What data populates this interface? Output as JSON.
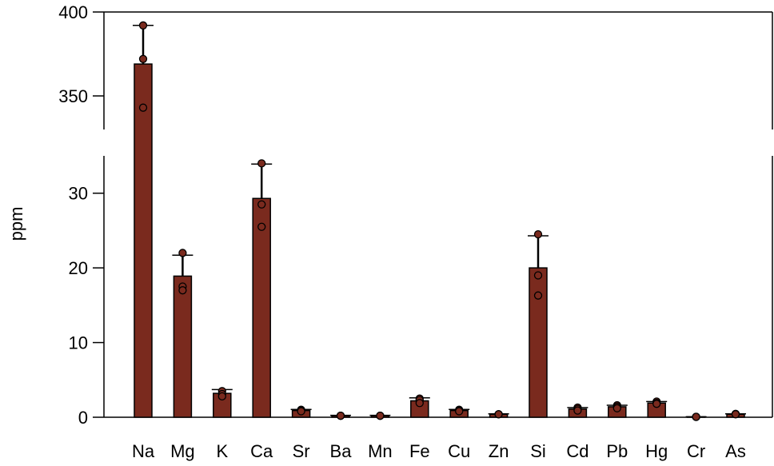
{
  "chart_data": {
    "type": "bar",
    "ylabel": "ppm",
    "xlabel": "",
    "axis_break": true,
    "upper_ylim": [
      330,
      400
    ],
    "upper_yticks": [
      "350",
      "400"
    ],
    "lower_ylim": [
      0,
      35
    ],
    "lower_yticks": [
      "0",
      "10",
      "20",
      "30"
    ],
    "bar_color": "#7a2a1e",
    "categories": [
      "Na",
      "Mg",
      "K",
      "Ca",
      "Sr",
      "Ba",
      "Mn",
      "Fe",
      "Cu",
      "Zn",
      "Si",
      "Cd",
      "Pb",
      "Hg",
      "Cr",
      "As"
    ],
    "values": [
      369,
      18.9,
      3.2,
      29.3,
      0.9,
      0.2,
      0.2,
      2.2,
      0.9,
      0.4,
      20.0,
      1.1,
      1.4,
      1.9,
      0.05,
      0.4
    ],
    "error": [
      23,
      2.8,
      0.5,
      4.6,
      0.15,
      0.05,
      0.05,
      0.4,
      0.15,
      0.05,
      4.3,
      0.2,
      0.2,
      0.2,
      0.02,
      0.05
    ],
    "points": [
      [
        392,
        372,
        343
      ],
      [
        22.0,
        17.5,
        17.0
      ],
      [
        3.5,
        3.1,
        2.8
      ],
      [
        34.0,
        28.5,
        25.5
      ],
      [
        1.0,
        0.9,
        0.8
      ],
      [
        0.2,
        0.2,
        0.2
      ],
      [
        0.2,
        0.2,
        0.2
      ],
      [
        2.5,
        2.3,
        1.9
      ],
      [
        1.0,
        0.9,
        0.8
      ],
      [
        0.4,
        0.4,
        0.4
      ],
      [
        24.5,
        19.0,
        16.3
      ],
      [
        1.3,
        1.1,
        0.9
      ],
      [
        1.6,
        1.4,
        1.2
      ],
      [
        2.1,
        1.9,
        1.8
      ],
      [
        0.05,
        0.05,
        0.05
      ],
      [
        0.45,
        0.4,
        0.4
      ]
    ]
  }
}
